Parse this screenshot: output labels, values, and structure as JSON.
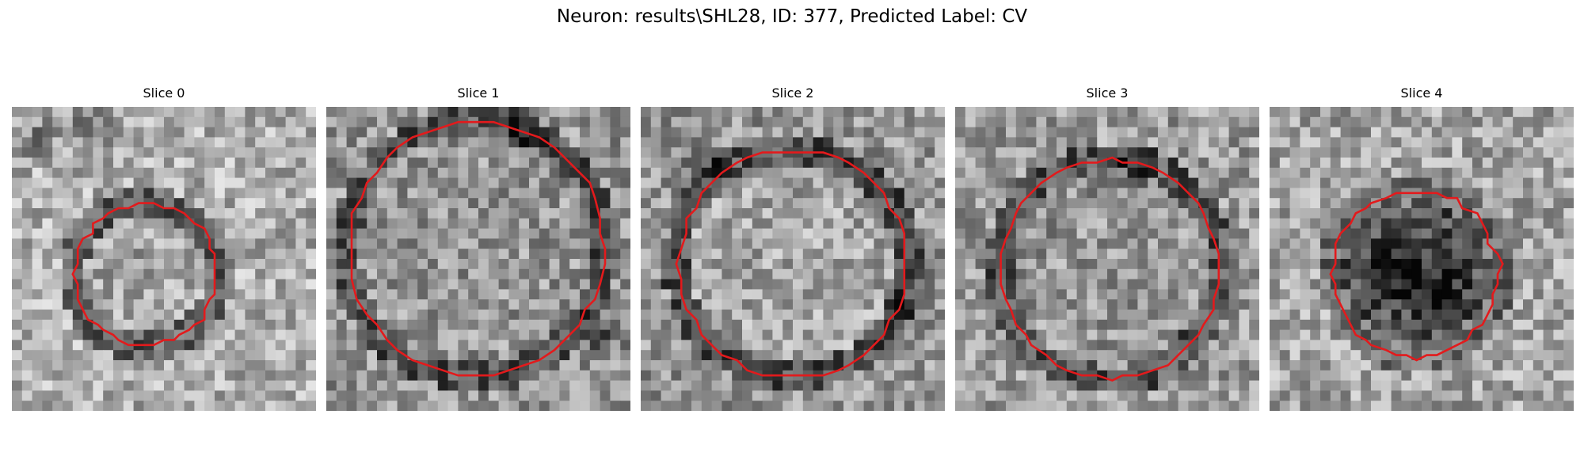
{
  "figure": {
    "title": "Neuron: results\\SHL28, ID: 377, Predicted Label: CV",
    "contour_color": "#e31a1c"
  },
  "panels": [
    {
      "title": "Slice 0",
      "pixel_grid": "30x30 grayscale",
      "contour": "red outline of vesicle"
    },
    {
      "title": "Slice 1",
      "pixel_grid": "30x30 grayscale",
      "contour": "red outline of vesicle"
    },
    {
      "title": "Slice 2",
      "pixel_grid": "30x30 grayscale",
      "contour": "red outline of vesicle"
    },
    {
      "title": "Slice 3",
      "pixel_grid": "30x30 grayscale",
      "contour": "red outline of vesicle"
    },
    {
      "title": "Slice 4",
      "pixel_grid": "30x30 grayscale",
      "contour": "red outline of vesicle"
    }
  ]
}
